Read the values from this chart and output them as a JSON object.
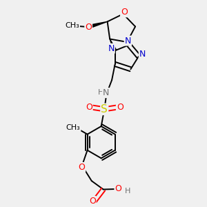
{
  "bg_color": "#f0f0f0",
  "atom_colors": {
    "O": "#ff0000",
    "N": "#0000cc",
    "S": "#cccc00",
    "C": "#000000",
    "H": "#707070"
  },
  "bond_color": "#000000",
  "bond_width": 1.4,
  "figsize": [
    3.0,
    3.0
  ],
  "dpi": 100
}
